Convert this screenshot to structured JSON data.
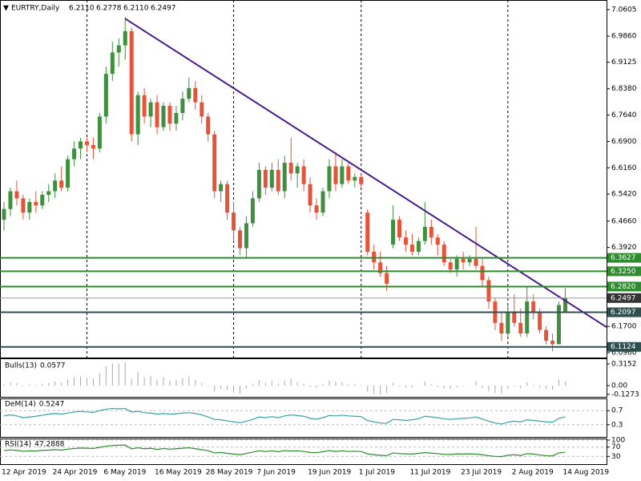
{
  "header": {
    "symbol": "EURTRY,Daily",
    "ohlc": [
      "6.2110",
      "6.2778",
      "6.2110",
      "6.2497"
    ]
  },
  "chart_data": [
    {
      "type": "candlestick",
      "categories": [
        "12 Apr 2019",
        null,
        null,
        null,
        null,
        null,
        null,
        null,
        "24 Apr 2019",
        null,
        null,
        null,
        null,
        null,
        null,
        null,
        "6 May 2019",
        null,
        null,
        null,
        null,
        null,
        null,
        null,
        "16 May 2019",
        null,
        null,
        null,
        null,
        null,
        null,
        null,
        "28 May 2019",
        null,
        null,
        null,
        null,
        null,
        null,
        null,
        "7 Jun 2019",
        null,
        null,
        null,
        null,
        null,
        null,
        null,
        "19 Jun 2019",
        null,
        null,
        null,
        null,
        null,
        null,
        null,
        "1 Jul 2019",
        null,
        null,
        null,
        null,
        null,
        null,
        null,
        "11 Jul 2019",
        null,
        null,
        null,
        null,
        null,
        null,
        null,
        "23 Jul 2019",
        null,
        null,
        null,
        null,
        null,
        null,
        null,
        "2 Aug 2019",
        null,
        null,
        null,
        null,
        null,
        null,
        null,
        "14 Aug 2019"
      ],
      "open": [
        6.47,
        6.5,
        6.55,
        6.53,
        6.49,
        6.52,
        6.51,
        6.54,
        6.55,
        6.58,
        6.56,
        6.64,
        6.67,
        6.69,
        6.68,
        6.67,
        6.76,
        6.88,
        6.94,
        6.96,
        7.0,
        6.71,
        6.82,
        6.76,
        6.8,
        6.73,
        6.79,
        6.74,
        6.77,
        6.81,
        6.84,
        6.8,
        6.76,
        6.71,
        6.55,
        6.57,
        6.49,
        6.44,
        6.39,
        6.46,
        6.53,
        6.61,
        6.56,
        6.61,
        6.55,
        6.63,
        6.6,
        6.62,
        6.57,
        6.51,
        6.49,
        6.55,
        6.62,
        6.57,
        6.62,
        6.58,
        6.59,
        6.49,
        6.38,
        6.35,
        6.32,
        6.4,
        6.47,
        6.42,
        6.4,
        6.38,
        6.41,
        6.45,
        6.42,
        6.4,
        6.35,
        6.33,
        6.36,
        6.35,
        6.36,
        6.34,
        6.3,
        6.24,
        6.18,
        6.15,
        6.21,
        6.18,
        6.15,
        6.24,
        6.21,
        6.16,
        6.13,
        6.12,
        6.211
      ],
      "high": [
        6.52,
        6.56,
        6.58,
        6.54,
        6.53,
        6.55,
        6.55,
        6.57,
        6.6,
        6.62,
        6.65,
        6.69,
        6.7,
        6.7,
        6.7,
        6.77,
        6.9,
        6.97,
        6.98,
        7.04,
        7.01,
        6.83,
        6.84,
        6.81,
        6.82,
        6.8,
        6.8,
        6.79,
        6.83,
        6.87,
        6.86,
        6.82,
        6.77,
        6.72,
        6.58,
        6.58,
        6.52,
        6.45,
        6.48,
        6.55,
        6.63,
        6.62,
        6.63,
        6.64,
        6.65,
        6.7,
        6.63,
        6.64,
        6.59,
        6.53,
        6.56,
        6.64,
        6.66,
        6.64,
        6.63,
        6.6,
        6.6,
        6.5,
        6.4,
        6.38,
        6.34,
        6.51,
        6.48,
        6.44,
        6.43,
        6.42,
        6.52,
        6.47,
        6.43,
        6.41,
        6.36,
        6.37,
        6.38,
        6.37,
        6.45,
        6.36,
        6.31,
        6.25,
        6.21,
        6.23,
        6.26,
        6.22,
        6.28,
        6.26,
        6.22,
        6.17,
        6.15,
        6.24,
        6.2778
      ],
      "low": [
        6.44,
        6.48,
        6.51,
        6.47,
        6.47,
        6.49,
        6.5,
        6.52,
        6.53,
        6.55,
        6.55,
        6.62,
        6.64,
        6.66,
        6.64,
        6.66,
        6.74,
        6.86,
        6.9,
        6.92,
        6.69,
        6.68,
        6.74,
        6.73,
        6.71,
        6.72,
        6.72,
        6.72,
        6.75,
        6.8,
        6.78,
        6.74,
        6.69,
        6.53,
        6.52,
        6.47,
        6.41,
        6.37,
        6.36,
        6.45,
        6.52,
        6.54,
        6.55,
        6.54,
        6.53,
        6.58,
        6.56,
        6.55,
        6.49,
        6.47,
        6.48,
        6.53,
        6.55,
        6.56,
        6.57,
        6.56,
        6.56,
        6.37,
        6.33,
        6.31,
        6.27,
        6.39,
        6.41,
        6.38,
        6.37,
        6.37,
        6.4,
        6.4,
        6.37,
        6.34,
        6.32,
        6.31,
        6.33,
        6.34,
        6.33,
        6.28,
        6.22,
        6.16,
        6.13,
        6.14,
        6.17,
        6.14,
        6.14,
        6.19,
        6.15,
        6.12,
        6.1,
        6.12,
        6.211
      ],
      "close": [
        6.5,
        6.55,
        6.53,
        6.49,
        6.52,
        6.51,
        6.54,
        6.55,
        6.58,
        6.56,
        6.64,
        6.67,
        6.69,
        6.68,
        6.67,
        6.76,
        6.88,
        6.94,
        6.96,
        7.0,
        6.71,
        6.82,
        6.76,
        6.8,
        6.73,
        6.79,
        6.74,
        6.77,
        6.81,
        6.84,
        6.8,
        6.76,
        6.71,
        6.55,
        6.57,
        6.49,
        6.44,
        6.39,
        6.46,
        6.53,
        6.61,
        6.56,
        6.61,
        6.55,
        6.63,
        6.6,
        6.62,
        6.57,
        6.51,
        6.49,
        6.55,
        6.62,
        6.57,
        6.62,
        6.58,
        6.59,
        6.57,
        6.38,
        6.35,
        6.32,
        6.29,
        6.47,
        6.42,
        6.4,
        6.38,
        6.41,
        6.45,
        6.42,
        6.4,
        6.35,
        6.33,
        6.36,
        6.35,
        6.36,
        6.34,
        6.3,
        6.24,
        6.18,
        6.15,
        6.21,
        6.18,
        6.15,
        6.24,
        6.21,
        6.16,
        6.13,
        6.12,
        6.23,
        6.2497
      ],
      "up_color": "#3f8f3f",
      "down_color": "#e5533b",
      "ylim": [
        6.0825,
        7.0763
      ],
      "yticks": [
        7.0605,
        {
          "value": 6.986,
          "label": "6.9860"
        },
        6.9125,
        {
          "value": 6.838,
          "label": "6.8380"
        },
        {
          "value": 6.764,
          "label": "6.7640"
        },
        {
          "value": 6.69,
          "label": "6.6900"
        },
        {
          "value": 6.616,
          "label": "6.6160"
        },
        {
          "value": 6.542,
          "label": "6.5420"
        },
        {
          "value": 6.466,
          "label": "6.4660"
        },
        {
          "value": 6.392,
          "label": "6.3920"
        },
        {
          "value": 6.17,
          "label": "6.1700"
        },
        {
          "value": 6.096,
          "label": "6.0960"
        }
      ],
      "levels": [
        {
          "value": 6.3627,
          "color": "#2e8b2e"
        },
        {
          "value": 6.325,
          "label": "6.3250",
          "color": "#2e8b2e"
        },
        {
          "value": 6.282,
          "label": "6.2820",
          "color": "#2e8b2e"
        },
        {
          "value": 6.2097,
          "color": "#2f4f4f"
        },
        {
          "value": 6.1124,
          "color": "#2f4f4f"
        }
      ],
      "trendline": {
        "color": "#4b1c8c",
        "values": [
          7.035,
          6.168
        ]
      }
    },
    {
      "type": "histogram",
      "title": "Bulls(13)",
      "color": "#a9a9a9",
      "values": [
        0.02,
        0.05,
        0.04,
        -0.01,
        0.02,
        0.01,
        0.03,
        0.04,
        0.06,
        0.04,
        0.09,
        0.12,
        0.13,
        0.11,
        0.1,
        0.18,
        0.28,
        0.33,
        0.32,
        0.34,
        0.1,
        0.2,
        0.12,
        0.14,
        0.08,
        0.12,
        0.07,
        0.08,
        0.11,
        0.13,
        0.08,
        0.04,
        -0.01,
        -0.09,
        -0.05,
        -0.06,
        -0.1,
        -0.12,
        -0.04,
        0.02,
        0.08,
        0.04,
        0.07,
        0.03,
        0.07,
        0.1,
        0.05,
        0.03,
        -0.02,
        -0.03,
        0.02,
        0.07,
        0.06,
        0.05,
        0.02,
        0.02,
        0.01,
        -0.09,
        -0.12,
        -0.13,
        -0.11,
        0.04,
        -0.01,
        -0.03,
        -0.03,
        0.0,
        0.06,
        0.02,
        -0.02,
        -0.04,
        -0.05,
        -0.02,
        -0.01,
        0.0,
        0.06,
        -0.04,
        -0.08,
        -0.11,
        -0.12,
        -0.05,
        -0.01,
        -0.04,
        0.05,
        0.01,
        -0.03,
        -0.05,
        -0.06,
        0.09,
        0.0577
      ],
      "ylim": [
        -0.14,
        0.35
      ],
      "yticks": [
        0.3152,
        {
          "value": 0,
          "label": "0.00"
        },
        -0.1273
      ]
    },
    {
      "type": "line",
      "title": "DeM(14)",
      "color": "#3aa0a8",
      "values": [
        0.55,
        0.58,
        0.55,
        0.5,
        0.52,
        0.54,
        0.57,
        0.6,
        0.62,
        0.6,
        0.63,
        0.66,
        0.68,
        0.66,
        0.65,
        0.7,
        0.74,
        0.76,
        0.75,
        0.76,
        0.66,
        0.68,
        0.64,
        0.63,
        0.6,
        0.62,
        0.6,
        0.61,
        0.63,
        0.64,
        0.62,
        0.58,
        0.52,
        0.45,
        0.44,
        0.41,
        0.38,
        0.36,
        0.4,
        0.45,
        0.52,
        0.5,
        0.53,
        0.5,
        0.55,
        0.58,
        0.56,
        0.54,
        0.48,
        0.46,
        0.5,
        0.56,
        0.55,
        0.57,
        0.55,
        0.54,
        0.53,
        0.42,
        0.38,
        0.35,
        0.34,
        0.45,
        0.44,
        0.42,
        0.44,
        0.47,
        0.54,
        0.52,
        0.5,
        0.47,
        0.45,
        0.47,
        0.48,
        0.49,
        0.52,
        0.46,
        0.4,
        0.35,
        0.32,
        0.37,
        0.4,
        0.38,
        0.44,
        0.42,
        0.4,
        0.38,
        0.37,
        0.48,
        0.5247
      ],
      "ylim": [
        0,
        1
      ],
      "yticks": [
        0.7,
        0.3
      ]
    },
    {
      "type": "line",
      "title": "RSI(14)",
      "color": "#2e8b2e",
      "values": [
        55,
        58,
        56,
        52,
        54,
        53,
        56,
        57,
        59,
        57,
        61,
        64,
        66,
        65,
        64,
        69,
        74,
        77,
        78,
        79,
        62,
        67,
        63,
        65,
        60,
        64,
        61,
        63,
        65,
        67,
        63,
        59,
        55,
        45,
        47,
        43,
        40,
        37,
        43,
        48,
        54,
        51,
        54,
        50,
        55,
        53,
        54,
        51,
        47,
        46,
        50,
        55,
        51,
        54,
        51,
        52,
        51,
        41,
        37,
        35,
        33,
        45,
        42,
        41,
        40,
        43,
        46,
        44,
        42,
        39,
        38,
        41,
        40,
        41,
        40,
        37,
        33,
        30,
        29,
        35,
        37,
        34,
        42,
        40,
        36,
        33,
        32,
        45,
        47.2888
      ],
      "ylim": [
        0,
        100
      ],
      "yticks": [
        100,
        70,
        30
      ]
    }
  ]
}
